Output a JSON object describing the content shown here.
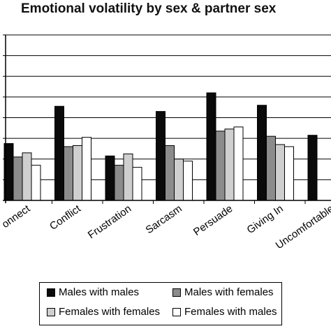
{
  "chart_data": {
    "type": "bar",
    "title": "Emotional volatility by sex & partner sex",
    "categories": [
      "Connect",
      "Conflict",
      "Frustration",
      "Sarcasm",
      "Persuade",
      "Giving In",
      "Uncomfortable"
    ],
    "category_labels_visible": [
      "onnect",
      "Conflict",
      "Frustration",
      "Sarcasm",
      "Persuade",
      "Giving In",
      "Uncomfortable"
    ],
    "series": [
      {
        "name": "Males with males",
        "color": "#0a0a0a",
        "values": [
          3.75,
          5.55,
          3.15,
          5.3,
          6.2,
          5.6,
          4.15
        ]
      },
      {
        "name": "Males with females",
        "color": "#8c8c8c",
        "values": [
          3.1,
          3.6,
          2.7,
          3.65,
          4.35,
          4.1,
          null
        ]
      },
      {
        "name": "Females with females",
        "color": "#cfcfcf",
        "values": [
          3.3,
          3.65,
          3.25,
          3.0,
          4.45,
          3.7,
          null
        ]
      },
      {
        "name": "Females with males",
        "color": "#ffffff",
        "values": [
          2.7,
          4.05,
          2.6,
          2.9,
          4.55,
          3.6,
          null
        ]
      }
    ],
    "ylim": [
      1,
      9
    ],
    "yticks": [
      1,
      2,
      3,
      4,
      5,
      6,
      7,
      8,
      9
    ],
    "y_tick_labels_visible": false,
    "grid": "horizontal",
    "legend": {
      "position": "bottom",
      "columns": 2
    }
  }
}
